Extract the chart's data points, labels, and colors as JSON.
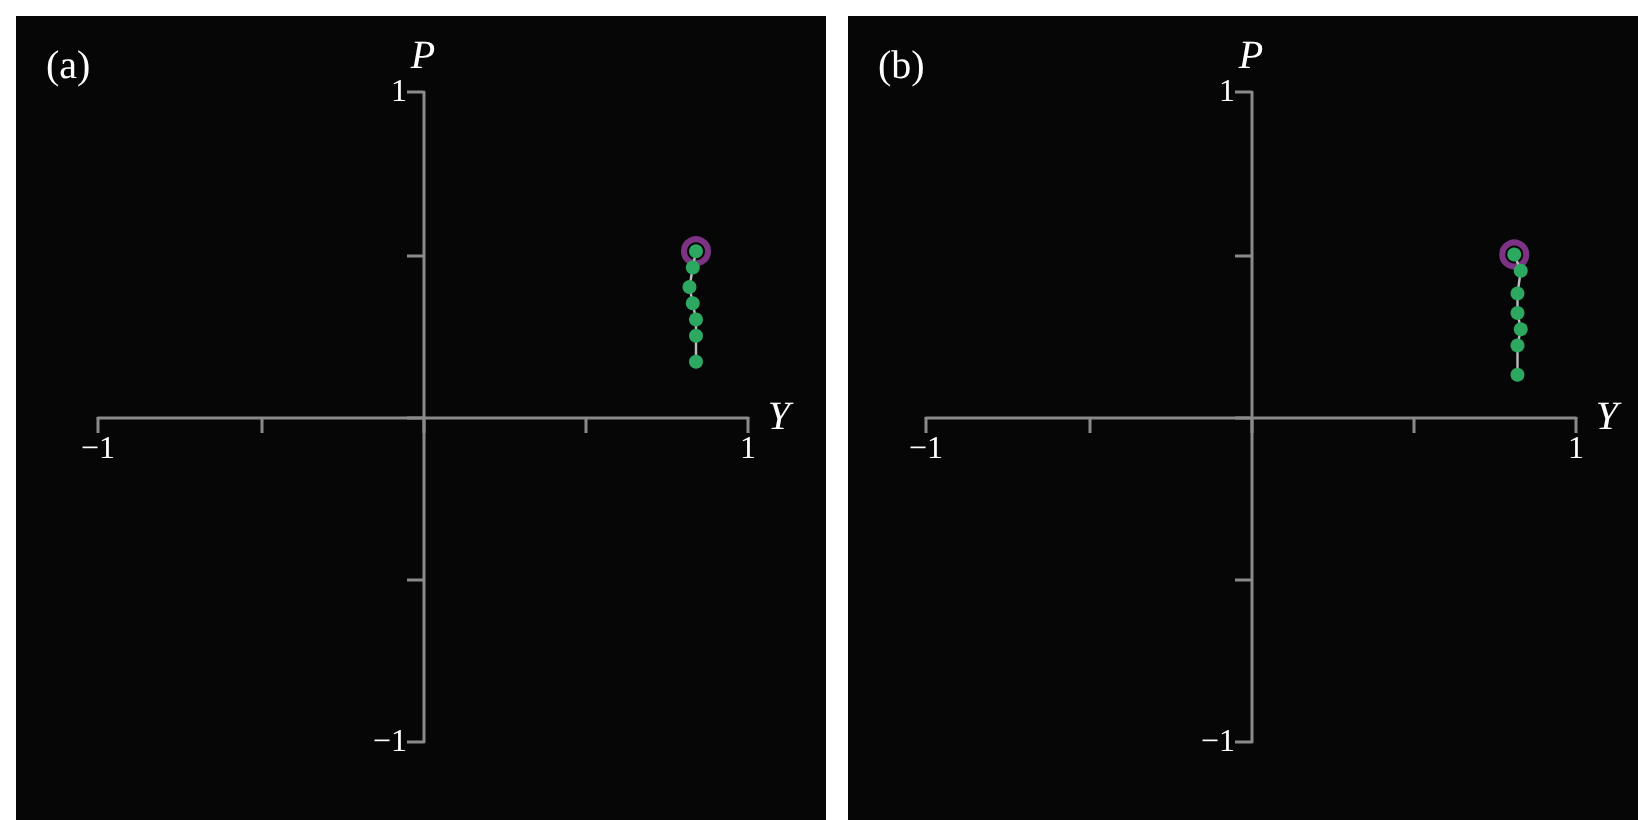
{
  "chart_data": [
    {
      "type": "line",
      "title": "(a)",
      "xlabel": "Y",
      "ylabel": "P",
      "xlim": [
        -1,
        1
      ],
      "ylim": [
        -1,
        1
      ],
      "xticks": [
        {
          "value": -1,
          "label": "−1"
        },
        {
          "value": -0.5,
          "label": null
        },
        {
          "value": 0,
          "label": null
        },
        {
          "value": 0.5,
          "label": null
        },
        1
      ],
      "yticks": [
        {
          "value": -1,
          "label": "−1"
        },
        {
          "value": -0.5,
          "label": null
        },
        {
          "value": 0,
          "label": null
        },
        {
          "value": 0.5,
          "label": null
        },
        1
      ],
      "marker": "circle",
      "series": [
        {
          "type": "line",
          "color": "#2ca860",
          "x": [
            0.84,
            0.84,
            0.84,
            0.83,
            0.82,
            0.83,
            0.84
          ],
          "values": [
            0.17,
            0.25,
            0.3,
            0.35,
            0.4,
            0.46,
            0.51
          ]
        },
        {
          "type": "scatter",
          "color": "#9b3fa3",
          "x": [
            0.84
          ],
          "values": [
            0.51
          ]
        }
      ]
    },
    {
      "type": "line",
      "title": "(b)",
      "xlabel": "Y",
      "ylabel": "P",
      "xlim": [
        -1,
        1
      ],
      "ylim": [
        -1,
        1
      ],
      "xticks": [
        {
          "value": -1,
          "label": "−1"
        },
        {
          "value": -0.5,
          "label": null
        },
        {
          "value": 0,
          "label": null
        },
        {
          "value": 0.5,
          "label": null
        },
        1
      ],
      "yticks": [
        {
          "value": -1,
          "label": "−1"
        },
        {
          "value": -0.5,
          "label": null
        },
        {
          "value": 0,
          "label": null
        },
        {
          "value": 0.5,
          "label": null
        },
        1
      ],
      "marker": "circle",
      "series": [
        {
          "type": "line",
          "color": "#2ca860",
          "x": [
            0.82,
            0.82,
            0.83,
            0.82,
            0.82,
            0.83,
            0.81
          ],
          "values": [
            0.13,
            0.22,
            0.27,
            0.32,
            0.38,
            0.45,
            0.5
          ]
        },
        {
          "type": "scatter",
          "color": "#9b3fa3",
          "x": [
            0.81
          ],
          "values": [
            0.5
          ]
        }
      ]
    }
  ]
}
